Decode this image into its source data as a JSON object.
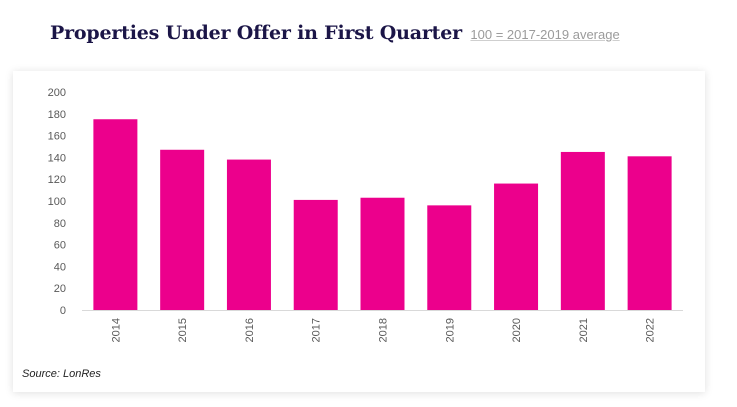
{
  "header": {
    "title": "Properties Under Offer in First Quarter",
    "subtitle": "100 = 2017-2019 average"
  },
  "source": "Source: LonRes",
  "colors": {
    "bar": "#ec008c",
    "axis": "#d9d9d9",
    "title": "#1b1547"
  },
  "chart_data": {
    "type": "bar",
    "title": "Properties Under Offer in First Quarter",
    "subtitle": "100 = 2017-2019 average",
    "categories": [
      "2014",
      "2015",
      "2016",
      "2017",
      "2018",
      "2019",
      "2020",
      "2021",
      "2022"
    ],
    "values": [
      175,
      147,
      138,
      101,
      103,
      96,
      116,
      145,
      141
    ],
    "yticks": [
      "0",
      "20",
      "40",
      "60",
      "80",
      "100",
      "120",
      "140",
      "160",
      "180",
      "200"
    ],
    "ylim": [
      0,
      200
    ],
    "xlabel": "",
    "ylabel": "",
    "grid": false,
    "legend": "none"
  }
}
